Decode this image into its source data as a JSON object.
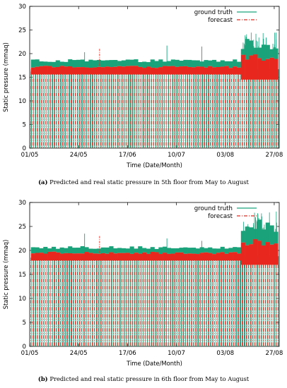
{
  "chart_data": [
    {
      "type": "line",
      "xlabel": "Time (Date/Month)",
      "ylabel": "Static pressure (mmaq)",
      "x_ticks": [
        "01/05",
        "24/05",
        "17/06",
        "10/07",
        "03/08",
        "27/08"
      ],
      "x_range": [
        "01/05",
        "31/08"
      ],
      "ylim": [
        0,
        30
      ],
      "y_ticks": [
        0,
        5,
        10,
        15,
        20,
        25,
        30
      ],
      "legend_position": "top-right",
      "series": [
        {
          "name": "ground truth",
          "color": "#1aa37a",
          "style": "solid",
          "typical_level": 18.2,
          "late_level": 20.5,
          "late_peak": 24.5,
          "spikes": [
            20.3,
            21.7,
            21.5
          ]
        },
        {
          "name": "forecast",
          "color": "#e8281e",
          "style": "dash-dot",
          "typical_level": 17.2,
          "late_level": 18.5,
          "spikes": [
            21.0
          ]
        }
      ],
      "caption_tag": "(a)",
      "caption_text": "Predicted and real static pressure in 5th floor from May to August"
    },
    {
      "type": "line",
      "xlabel": "Time (Date/Month)",
      "ylabel": "Static pressure (mmaq)",
      "x_ticks": [
        "01/05",
        "24/05",
        "17/06",
        "10/07",
        "03/08",
        "27/08"
      ],
      "x_range": [
        "01/05",
        "31/08"
      ],
      "ylim": [
        0,
        30
      ],
      "y_ticks": [
        0,
        5,
        10,
        15,
        20,
        25,
        30
      ],
      "legend_position": "top-right",
      "series": [
        {
          "name": "ground truth",
          "color": "#1aa37a",
          "style": "solid",
          "typical_level": 20.3,
          "late_level": 23.0,
          "late_peak": 28.5,
          "spikes": [
            23.5,
            22.5,
            22.0
          ]
        },
        {
          "name": "forecast",
          "color": "#e8281e",
          "style": "dash-dot",
          "typical_level": 19.5,
          "late_level": 21.0,
          "spikes": [
            23.0
          ]
        }
      ],
      "caption_tag": "(b)",
      "caption_text": "Predicted and real static pressure in 6th floor from May to August"
    }
  ]
}
